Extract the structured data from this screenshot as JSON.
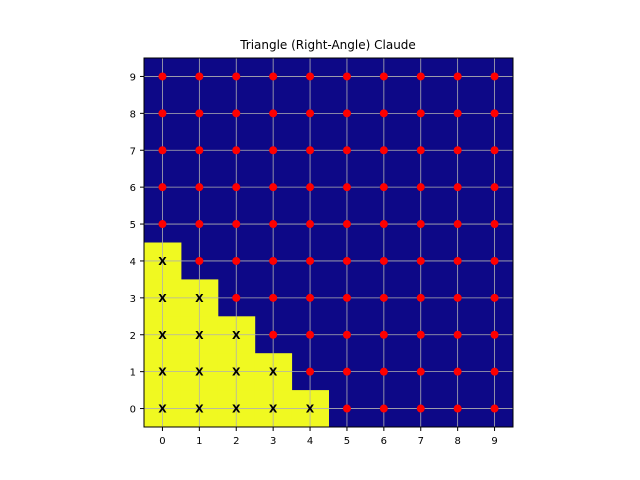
{
  "chart_data": {
    "type": "heatmap",
    "title": "Triangle (Right-Angle) Claude",
    "xlabel": "",
    "ylabel": "",
    "x_ticks": [
      "0",
      "1",
      "2",
      "3",
      "4",
      "5",
      "6",
      "7",
      "8",
      "9"
    ],
    "y_ticks": [
      "0",
      "1",
      "2",
      "3",
      "4",
      "5",
      "6",
      "7",
      "8",
      "9"
    ],
    "xlim": [
      -0.5,
      9.5
    ],
    "ylim": [
      -0.5,
      9.5
    ],
    "grid": true,
    "colors": {
      "filled": "#f0f921",
      "empty": "#0d0887",
      "dot": "#ff0000",
      "grid": "#b0b0b0"
    },
    "rule": "filled cell when x + y <= 4",
    "filled_cells": [
      [
        0,
        0
      ],
      [
        1,
        0
      ],
      [
        2,
        0
      ],
      [
        3,
        0
      ],
      [
        4,
        0
      ],
      [
        0,
        1
      ],
      [
        1,
        1
      ],
      [
        2,
        1
      ],
      [
        3,
        1
      ],
      [
        0,
        2
      ],
      [
        1,
        2
      ],
      [
        2,
        2
      ],
      [
        0,
        3
      ],
      [
        1,
        3
      ],
      [
        0,
        4
      ]
    ],
    "marker_filled": "X",
    "marker_empty": "red-dot"
  }
}
